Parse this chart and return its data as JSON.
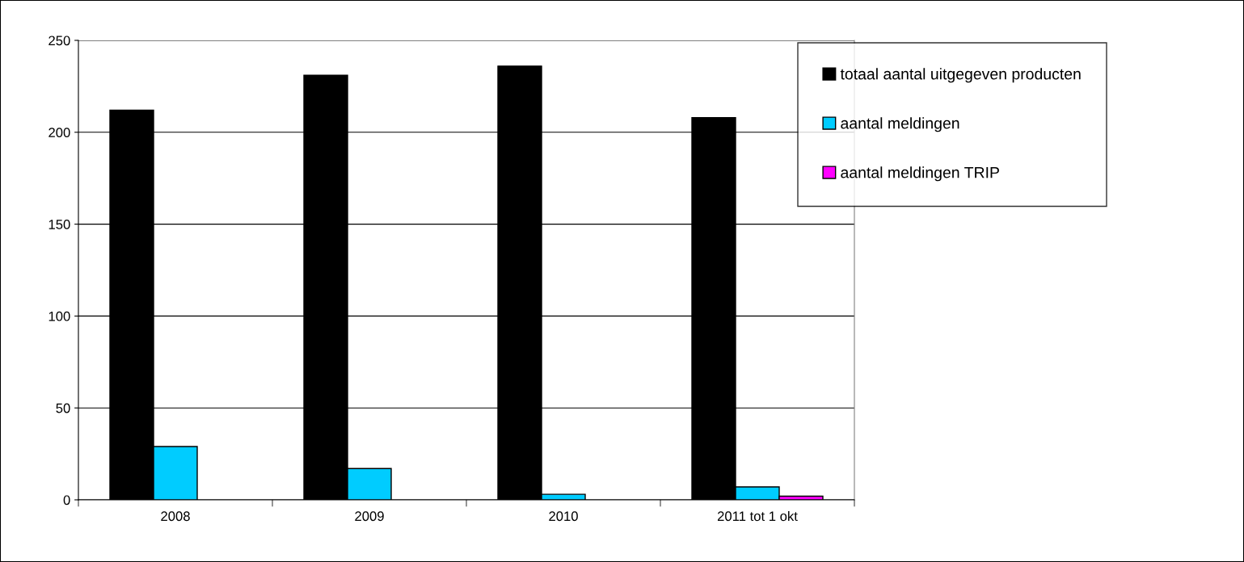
{
  "chart_data": {
    "type": "bar",
    "categories": [
      "2008",
      "2009",
      "2010",
      "2011 tot 1 okt"
    ],
    "series": [
      {
        "name": "totaal aantal uitgegeven producten",
        "color": "#000000",
        "values": [
          212,
          231,
          236,
          208
        ]
      },
      {
        "name": "aantal meldingen",
        "color": "#00ccff",
        "values": [
          29,
          17,
          3,
          7
        ]
      },
      {
        "name": "aantal meldingen TRIP",
        "color": "#ff00ff",
        "values": [
          null,
          null,
          null,
          2
        ]
      }
    ],
    "ylim": [
      0,
      250
    ],
    "yticks": [
      0,
      50,
      100,
      150,
      200,
      250
    ],
    "grid": "y",
    "legend": "top right"
  }
}
